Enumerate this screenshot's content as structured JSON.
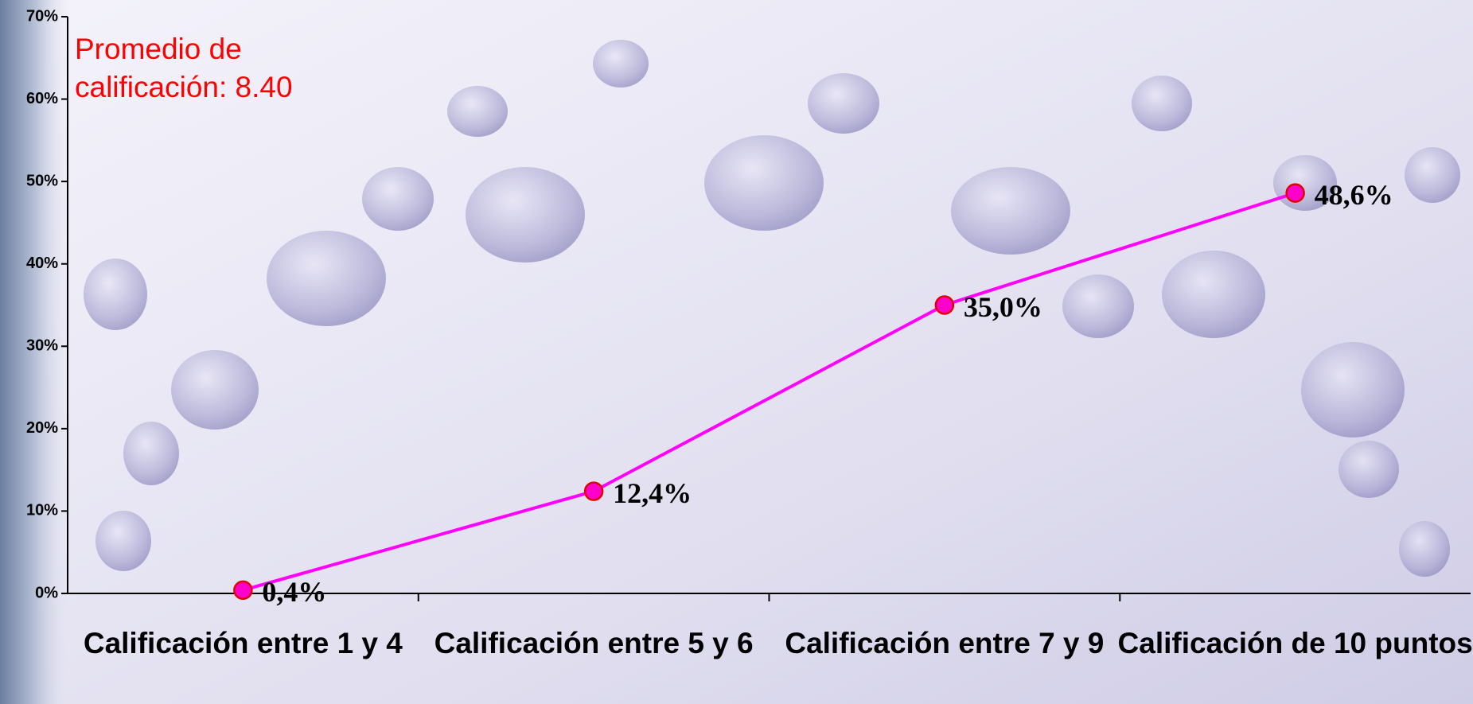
{
  "chart_data": {
    "type": "line",
    "annotation": "Promedio de calificación: 8.40",
    "categories": [
      "Calificación entre 1 y 4",
      "Calificación entre 5 y 6",
      "Calificación entre 7 y 9",
      "Calificación de 10 puntos"
    ],
    "values": [
      0.4,
      12.4,
      35.0,
      48.6
    ],
    "value_labels": [
      "0,4%",
      "12,4%",
      "35,0%",
      "48,6%"
    ],
    "color": "#ff00ff",
    "marker_color": "#ff00cc",
    "ylim": [
      0,
      70
    ],
    "yticks": [
      {
        "value": 0,
        "label": "0%"
      },
      {
        "value": 10,
        "label": "10%"
      },
      {
        "value": 20,
        "label": "20%"
      },
      {
        "value": 30,
        "label": "30%"
      },
      {
        "value": 40,
        "label": "40%"
      },
      {
        "value": 50,
        "label": "50%"
      },
      {
        "value": 60,
        "label": "60%"
      },
      {
        "value": 70,
        "label": "70%"
      }
    ]
  }
}
